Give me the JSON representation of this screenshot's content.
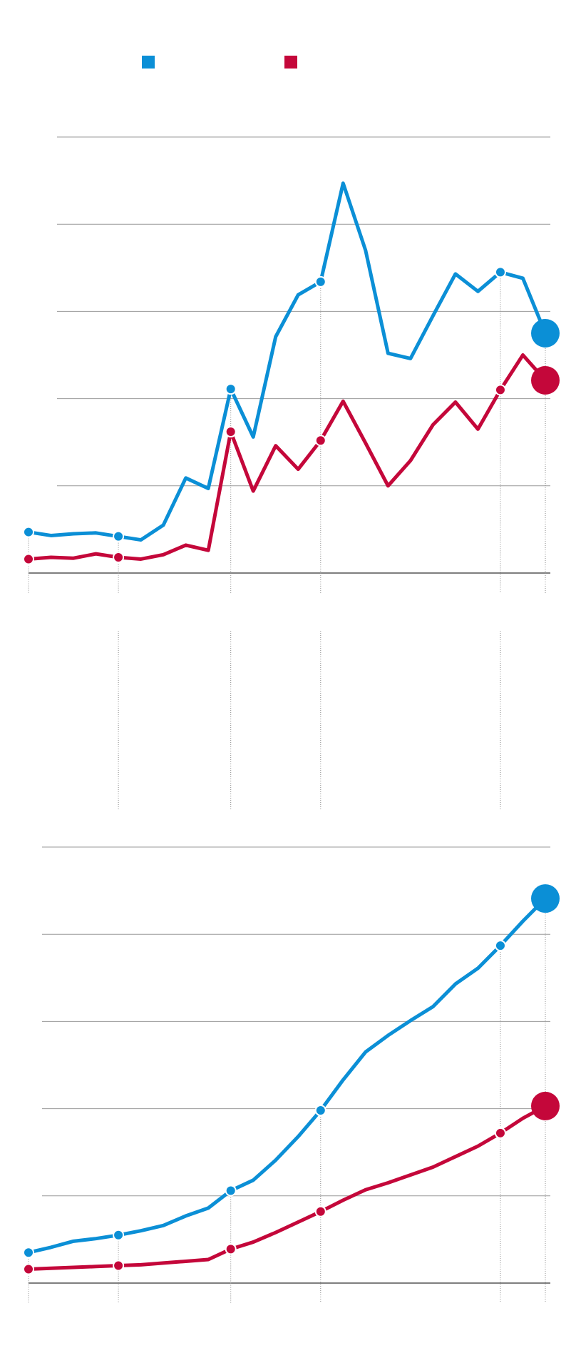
{
  "chart_data": [
    {
      "type": "line",
      "x": [
        0,
        1,
        2,
        3,
        4,
        5,
        6,
        7,
        8,
        9,
        10,
        11,
        12,
        13,
        14,
        15,
        16,
        17,
        18,
        19,
        20,
        21,
        22,
        23
      ],
      "xlim": [
        0,
        23
      ],
      "xticks": [
        0,
        4,
        9,
        13,
        21,
        23
      ],
      "ylim": [
        0,
        5
      ],
      "yticks": [
        0,
        1,
        2,
        3,
        4,
        5
      ],
      "grid": true,
      "series": [
        {
          "color": "#0b8fd6",
          "values": [
            0.47,
            0.43,
            0.45,
            0.46,
            0.42,
            0.38,
            0.55,
            1.09,
            0.97,
            2.11,
            1.56,
            2.71,
            3.19,
            3.34,
            4.47,
            3.7,
            2.52,
            2.46,
            2.95,
            3.43,
            3.23,
            3.45,
            3.38,
            2.75
          ]
        },
        {
          "color": "#c4073a",
          "values": [
            0.16,
            0.18,
            0.17,
            0.22,
            0.18,
            0.16,
            0.21,
            0.32,
            0.26,
            1.62,
            0.94,
            1.46,
            1.19,
            1.52,
            1.97,
            1.49,
            1.0,
            1.29,
            1.7,
            1.96,
            1.65,
            2.1,
            2.5,
            2.21
          ]
        }
      ]
    },
    {
      "type": "line",
      "x": [
        0,
        1,
        2,
        3,
        4,
        5,
        6,
        7,
        8,
        9,
        10,
        11,
        12,
        13,
        14,
        15,
        16,
        17,
        18,
        19,
        20,
        21,
        22,
        23
      ],
      "xlim": [
        0,
        23
      ],
      "xticks": [
        0,
        4,
        9,
        13,
        21,
        23
      ],
      "ylim": [
        0,
        5
      ],
      "yticks": [
        0,
        1,
        2,
        3,
        4,
        5
      ],
      "grid": true,
      "series": [
        {
          "color": "#0b8fd6",
          "values": [
            0.35,
            0.41,
            0.48,
            0.51,
            0.55,
            0.6,
            0.66,
            0.77,
            0.86,
            1.06,
            1.18,
            1.41,
            1.68,
            1.98,
            2.33,
            2.65,
            2.84,
            3.01,
            3.17,
            3.43,
            3.61,
            3.87,
            4.15,
            4.41
          ]
        },
        {
          "color": "#c4073a",
          "values": [
            0.16,
            0.17,
            0.18,
            0.19,
            0.2,
            0.21,
            0.23,
            0.25,
            0.27,
            0.39,
            0.47,
            0.58,
            0.7,
            0.82,
            0.95,
            1.07,
            1.15,
            1.24,
            1.33,
            1.45,
            1.57,
            1.72,
            1.89,
            2.03
          ]
        }
      ]
    }
  ]
}
